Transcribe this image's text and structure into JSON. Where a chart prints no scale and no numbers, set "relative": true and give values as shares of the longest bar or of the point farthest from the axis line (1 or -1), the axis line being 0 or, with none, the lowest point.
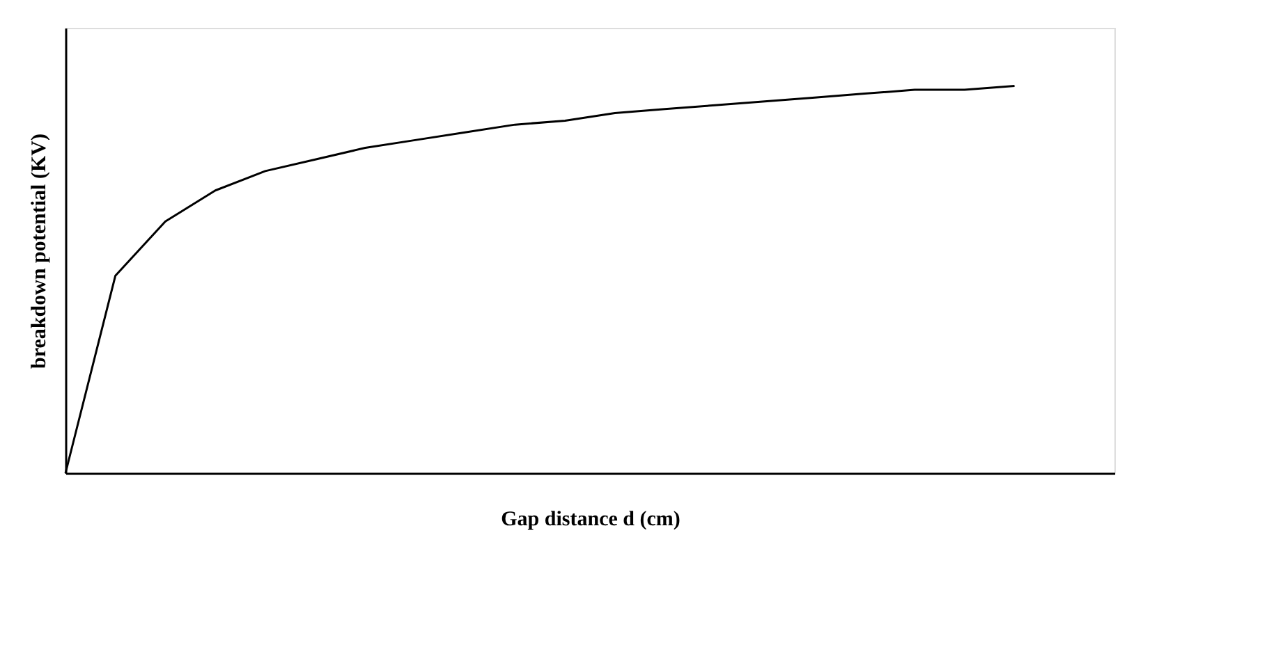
{
  "chart_data": {
    "type": "line",
    "relative": true,
    "xlabel": "Gap distance  d (cm)",
    "ylabel": "breakdown  potential (KV)",
    "categories": [
      null,
      null,
      null,
      null,
      null,
      null,
      null,
      null,
      null,
      null,
      null,
      null,
      null,
      null,
      null,
      null,
      null,
      null,
      null,
      null,
      null,
      null
    ],
    "series": [
      {
        "color": "#000000",
        "values": [
          0,
          0.51,
          0.65,
          0.73,
          0.78,
          0.81,
          0.84,
          0.86,
          0.88,
          0.9,
          0.91,
          0.93,
          0.94,
          0.95,
          0.96,
          0.97,
          0.98,
          0.99,
          0.99,
          1,
          null,
          null
        ]
      }
    ],
    "grid": false,
    "tick_labels": false,
    "marker": "none",
    "line_style": "solid"
  }
}
